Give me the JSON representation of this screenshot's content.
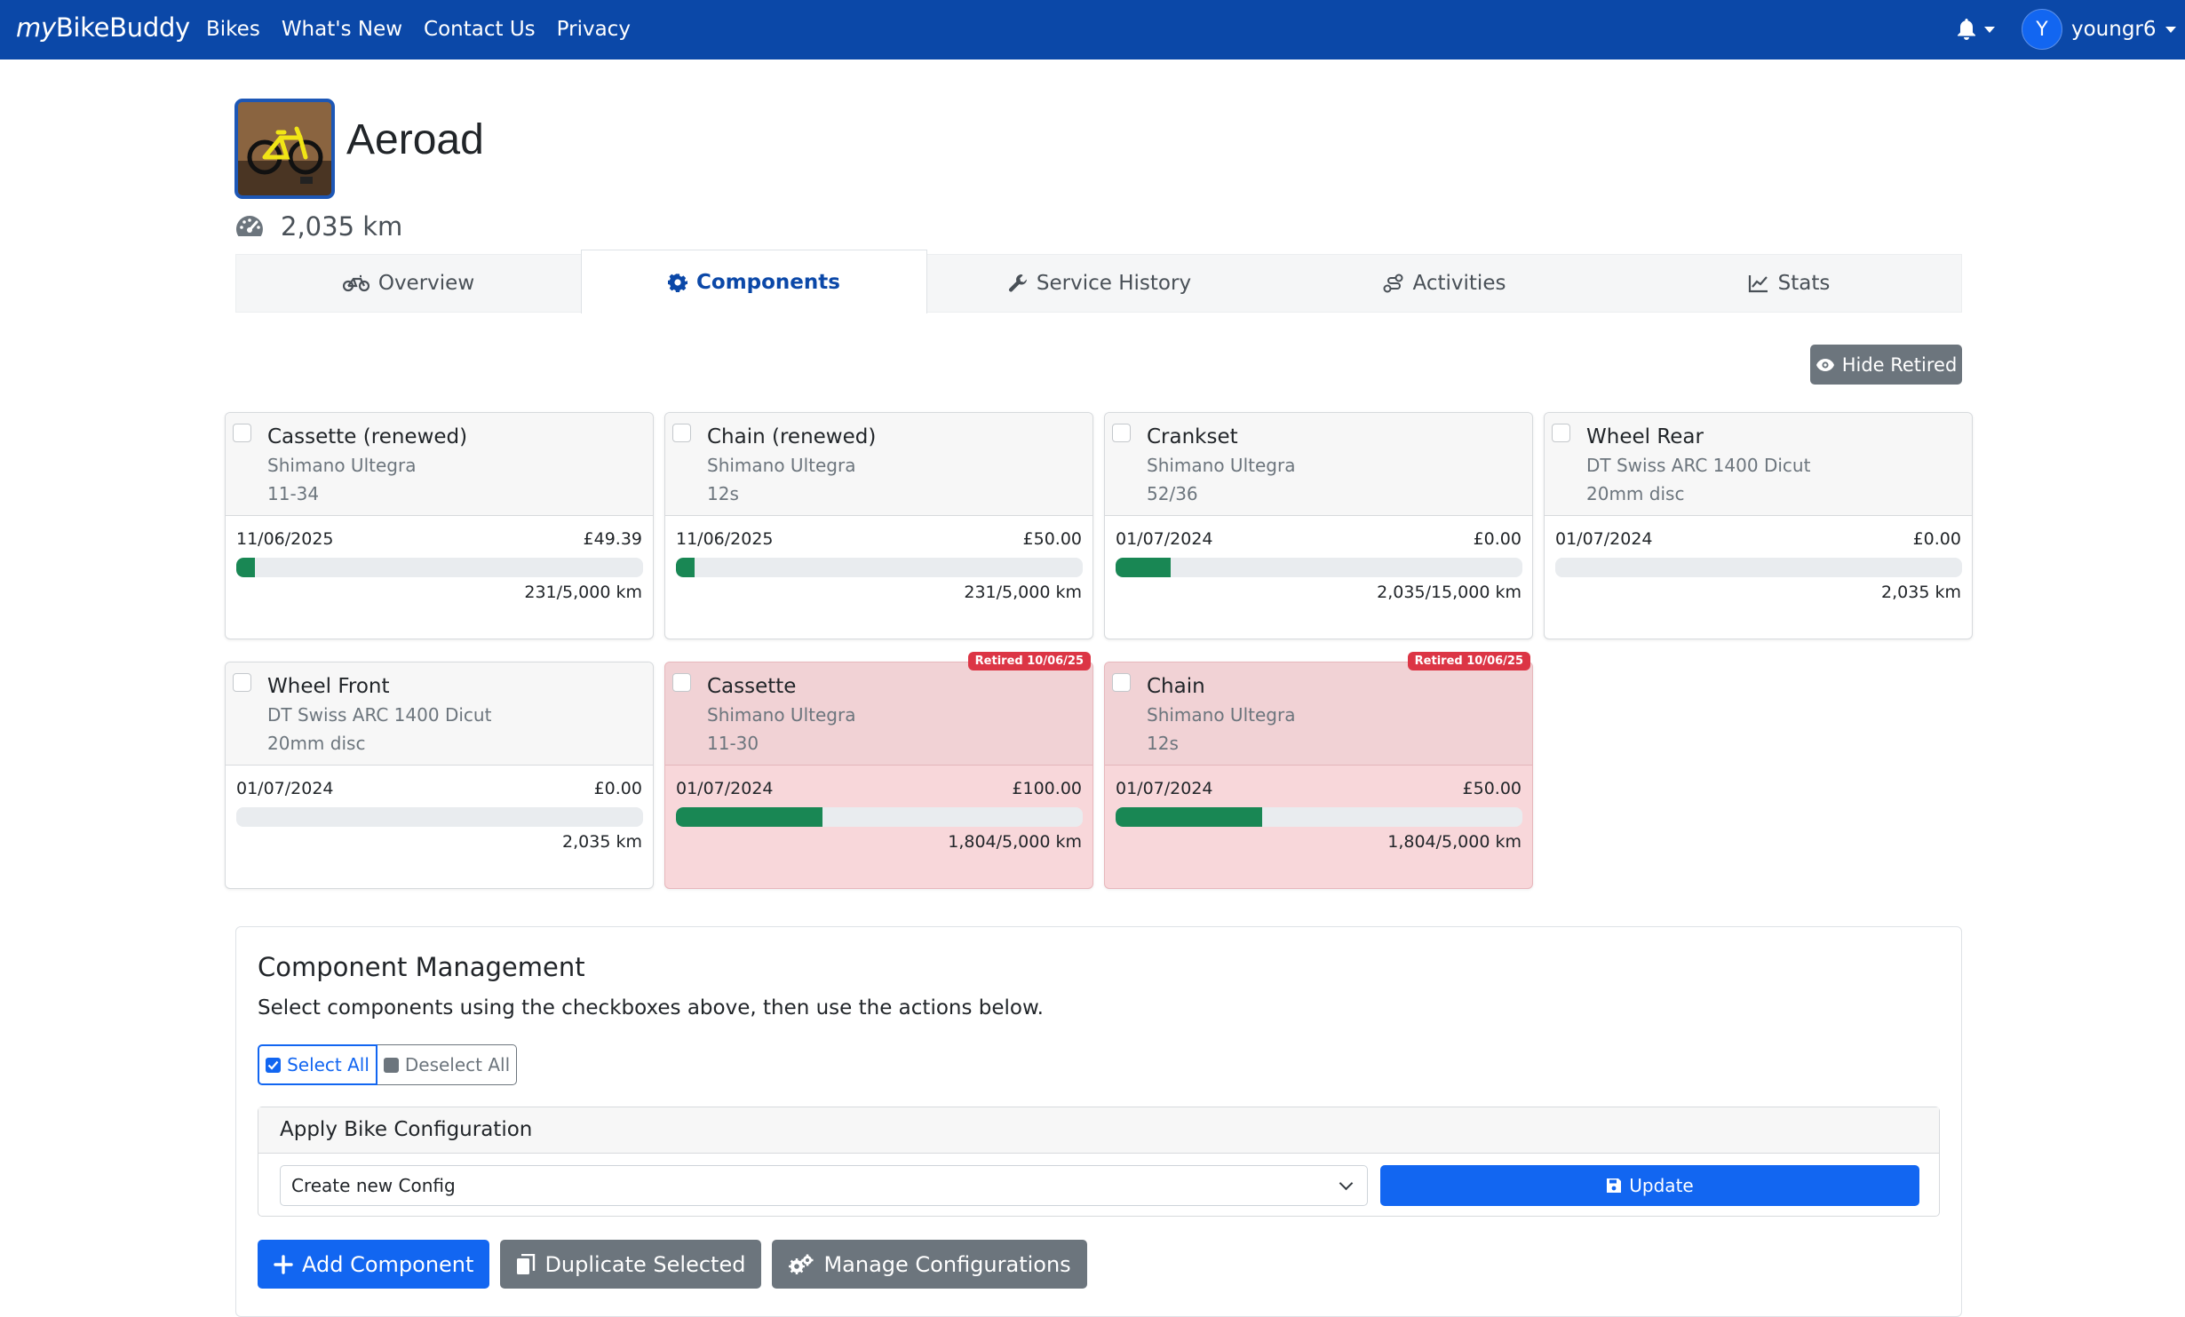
{
  "nav": {
    "brand_prefix": "my",
    "brand_suffix": "BikeBuddy",
    "links": [
      "Bikes",
      "What's New",
      "Contact Us",
      "Privacy"
    ],
    "avatar_initial": "Y",
    "username": "youngr6",
    "bell_icon": "bell-icon"
  },
  "bike": {
    "name": "Aeroad",
    "odometer": "2,035 km",
    "odometer_icon": "speedometer-icon"
  },
  "tabs": [
    {
      "label": "Overview",
      "icon": "bicycle-icon",
      "active": false
    },
    {
      "label": "Components",
      "icon": "gear-icon",
      "active": true
    },
    {
      "label": "Service History",
      "icon": "wrench-icon",
      "active": false
    },
    {
      "label": "Activities",
      "icon": "activity-route-icon",
      "active": false
    },
    {
      "label": "Stats",
      "icon": "line-chart-icon",
      "active": false
    }
  ],
  "hide_retired_label": "Hide Retired",
  "components": [
    {
      "name": "Cassette (renewed)",
      "brand": "Shimano Ultegra",
      "spec": "11-34",
      "date": "11/06/2025",
      "price": "£49.39",
      "distance": "231/5,000 km",
      "progress": 0.046,
      "retired": false,
      "badge": ""
    },
    {
      "name": "Chain (renewed)",
      "brand": "Shimano Ultegra",
      "spec": "12s",
      "date": "11/06/2025",
      "price": "£50.00",
      "distance": "231/5,000 km",
      "progress": 0.046,
      "retired": false,
      "badge": ""
    },
    {
      "name": "Crankset",
      "brand": "Shimano Ultegra",
      "spec": "52/36",
      "date": "01/07/2024",
      "price": "£0.00",
      "distance": "2,035/15,000 km",
      "progress": 0.136,
      "retired": false,
      "badge": ""
    },
    {
      "name": "Wheel Rear",
      "brand": "DT Swiss ARC 1400 Dicut",
      "spec": "20mm disc",
      "date": "01/07/2024",
      "price": "£0.00",
      "distance": "2,035 km",
      "progress": 0,
      "retired": false,
      "badge": ""
    },
    {
      "name": "Wheel Front",
      "brand": "DT Swiss ARC 1400 Dicut",
      "spec": "20mm disc",
      "date": "01/07/2024",
      "price": "£0.00",
      "distance": "2,035 km",
      "progress": 0,
      "retired": false,
      "badge": ""
    },
    {
      "name": "Cassette",
      "brand": "Shimano Ultegra",
      "spec": "11-30",
      "date": "01/07/2024",
      "price": "£100.00",
      "distance": "1,804/5,000 km",
      "progress": 0.361,
      "retired": true,
      "badge": "Retired 10/06/25"
    },
    {
      "name": "Chain",
      "brand": "Shimano Ultegra",
      "spec": "12s",
      "date": "01/07/2024",
      "price": "£50.00",
      "distance": "1,804/5,000 km",
      "progress": 0.361,
      "retired": true,
      "badge": "Retired 10/06/25"
    }
  ],
  "management": {
    "title": "Component Management",
    "description": "Select components using the checkboxes above, then use the actions below.",
    "select_all": "Select All",
    "deselect_all": "Deselect All",
    "config_header": "Apply Bike Configuration",
    "config_selected": "Create new Config",
    "update_label": "Update",
    "add_component": "Add Component",
    "duplicate_selected": "Duplicate Selected",
    "manage_configurations": "Manage Configurations"
  },
  "colors": {
    "navbar": "#0b48a8",
    "primary": "#1266f1",
    "secondary": "#6c757d",
    "progress": "#198754",
    "retired_bg": "#f8d7da",
    "retired_badge": "#dc3545"
  }
}
